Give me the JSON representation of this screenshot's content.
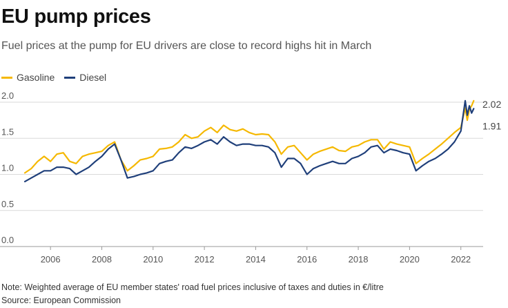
{
  "title": "EU pump prices",
  "subtitle": "Fuel prices at the pump for EU drivers are close to record highs hit in March",
  "note": "Note: Weighted average of EU member states' road fuel prices inclusive of taxes and duties in €/litre",
  "source": "Source: European Commission",
  "colors": {
    "gasoline": "#f5b800",
    "diesel": "#1f3f7a",
    "grid": "#d9d9d9",
    "axis": "#999999"
  },
  "chart_data": {
    "type": "line",
    "title": "EU pump prices",
    "xlabel": "",
    "ylabel": "",
    "xlim": [
      2005.0,
      2022.6
    ],
    "ylim": [
      0,
      2.0
    ],
    "yticks": [
      0,
      0.5,
      1.0,
      1.5,
      2.0
    ],
    "ytick_labels": [
      "0.0",
      "0.5",
      "1.0",
      "1.5",
      "2.0"
    ],
    "xticks": [
      2006,
      2008,
      2010,
      2012,
      2014,
      2016,
      2018,
      2020,
      2022
    ],
    "xtick_labels": [
      "2006",
      "2008",
      "2010",
      "2012",
      "2014",
      "2016",
      "2018",
      "2020",
      "2022"
    ],
    "legend": [
      "Gasoline",
      "Diesel"
    ],
    "end_labels": [
      "2.02",
      "1.91"
    ],
    "series": [
      {
        "name": "Gasoline",
        "x": [
          2005.0,
          2005.25,
          2005.5,
          2005.75,
          2006.0,
          2006.25,
          2006.5,
          2006.75,
          2007.0,
          2007.25,
          2007.5,
          2007.75,
          2008.0,
          2008.25,
          2008.5,
          2008.75,
          2009.0,
          2009.25,
          2009.5,
          2009.75,
          2010.0,
          2010.25,
          2010.5,
          2010.75,
          2011.0,
          2011.25,
          2011.5,
          2011.75,
          2012.0,
          2012.25,
          2012.5,
          2012.75,
          2013.0,
          2013.25,
          2013.5,
          2013.75,
          2014.0,
          2014.25,
          2014.5,
          2014.75,
          2015.0,
          2015.25,
          2015.5,
          2015.75,
          2016.0,
          2016.25,
          2016.5,
          2016.75,
          2017.0,
          2017.25,
          2017.5,
          2017.75,
          2018.0,
          2018.25,
          2018.5,
          2018.75,
          2019.0,
          2019.25,
          2019.5,
          2019.75,
          2020.0,
          2020.25,
          2020.5,
          2020.75,
          2021.0,
          2021.25,
          2021.5,
          2021.75,
          2022.0,
          2022.17,
          2022.25,
          2022.33,
          2022.42,
          2022.5
        ],
        "values": [
          1.02,
          1.08,
          1.18,
          1.25,
          1.18,
          1.28,
          1.3,
          1.18,
          1.15,
          1.25,
          1.28,
          1.3,
          1.32,
          1.4,
          1.45,
          1.2,
          1.05,
          1.12,
          1.2,
          1.22,
          1.25,
          1.35,
          1.36,
          1.38,
          1.45,
          1.55,
          1.5,
          1.52,
          1.6,
          1.65,
          1.58,
          1.68,
          1.62,
          1.6,
          1.63,
          1.58,
          1.55,
          1.56,
          1.55,
          1.45,
          1.28,
          1.38,
          1.4,
          1.3,
          1.2,
          1.28,
          1.32,
          1.35,
          1.38,
          1.33,
          1.32,
          1.38,
          1.4,
          1.45,
          1.48,
          1.48,
          1.35,
          1.45,
          1.42,
          1.4,
          1.38,
          1.15,
          1.22,
          1.28,
          1.35,
          1.42,
          1.5,
          1.58,
          1.65,
          1.92,
          1.75,
          1.9,
          1.95,
          2.02
        ]
      },
      {
        "name": "Diesel",
        "x": [
          2005.0,
          2005.25,
          2005.5,
          2005.75,
          2006.0,
          2006.25,
          2006.5,
          2006.75,
          2007.0,
          2007.25,
          2007.5,
          2007.75,
          2008.0,
          2008.25,
          2008.5,
          2008.75,
          2009.0,
          2009.25,
          2009.5,
          2009.75,
          2010.0,
          2010.25,
          2010.5,
          2010.75,
          2011.0,
          2011.25,
          2011.5,
          2011.75,
          2012.0,
          2012.25,
          2012.5,
          2012.75,
          2013.0,
          2013.25,
          2013.5,
          2013.75,
          2014.0,
          2014.25,
          2014.5,
          2014.75,
          2015.0,
          2015.25,
          2015.5,
          2015.75,
          2016.0,
          2016.25,
          2016.5,
          2016.75,
          2017.0,
          2017.25,
          2017.5,
          2017.75,
          2018.0,
          2018.25,
          2018.5,
          2018.75,
          2019.0,
          2019.25,
          2019.5,
          2019.75,
          2020.0,
          2020.25,
          2020.5,
          2020.75,
          2021.0,
          2021.25,
          2021.5,
          2021.75,
          2022.0,
          2022.17,
          2022.25,
          2022.33,
          2022.42,
          2022.5
        ],
        "values": [
          0.9,
          0.95,
          1.0,
          1.05,
          1.05,
          1.1,
          1.1,
          1.08,
          1.0,
          1.05,
          1.1,
          1.18,
          1.25,
          1.35,
          1.42,
          1.2,
          0.95,
          0.97,
          1.0,
          1.02,
          1.05,
          1.15,
          1.18,
          1.2,
          1.3,
          1.38,
          1.36,
          1.4,
          1.45,
          1.48,
          1.42,
          1.52,
          1.45,
          1.4,
          1.42,
          1.42,
          1.4,
          1.4,
          1.38,
          1.3,
          1.1,
          1.22,
          1.22,
          1.15,
          1.0,
          1.08,
          1.12,
          1.15,
          1.18,
          1.15,
          1.15,
          1.22,
          1.25,
          1.3,
          1.38,
          1.4,
          1.3,
          1.35,
          1.33,
          1.3,
          1.28,
          1.05,
          1.12,
          1.18,
          1.22,
          1.28,
          1.35,
          1.45,
          1.6,
          2.02,
          1.82,
          1.95,
          1.85,
          1.91
        ]
      }
    ]
  }
}
